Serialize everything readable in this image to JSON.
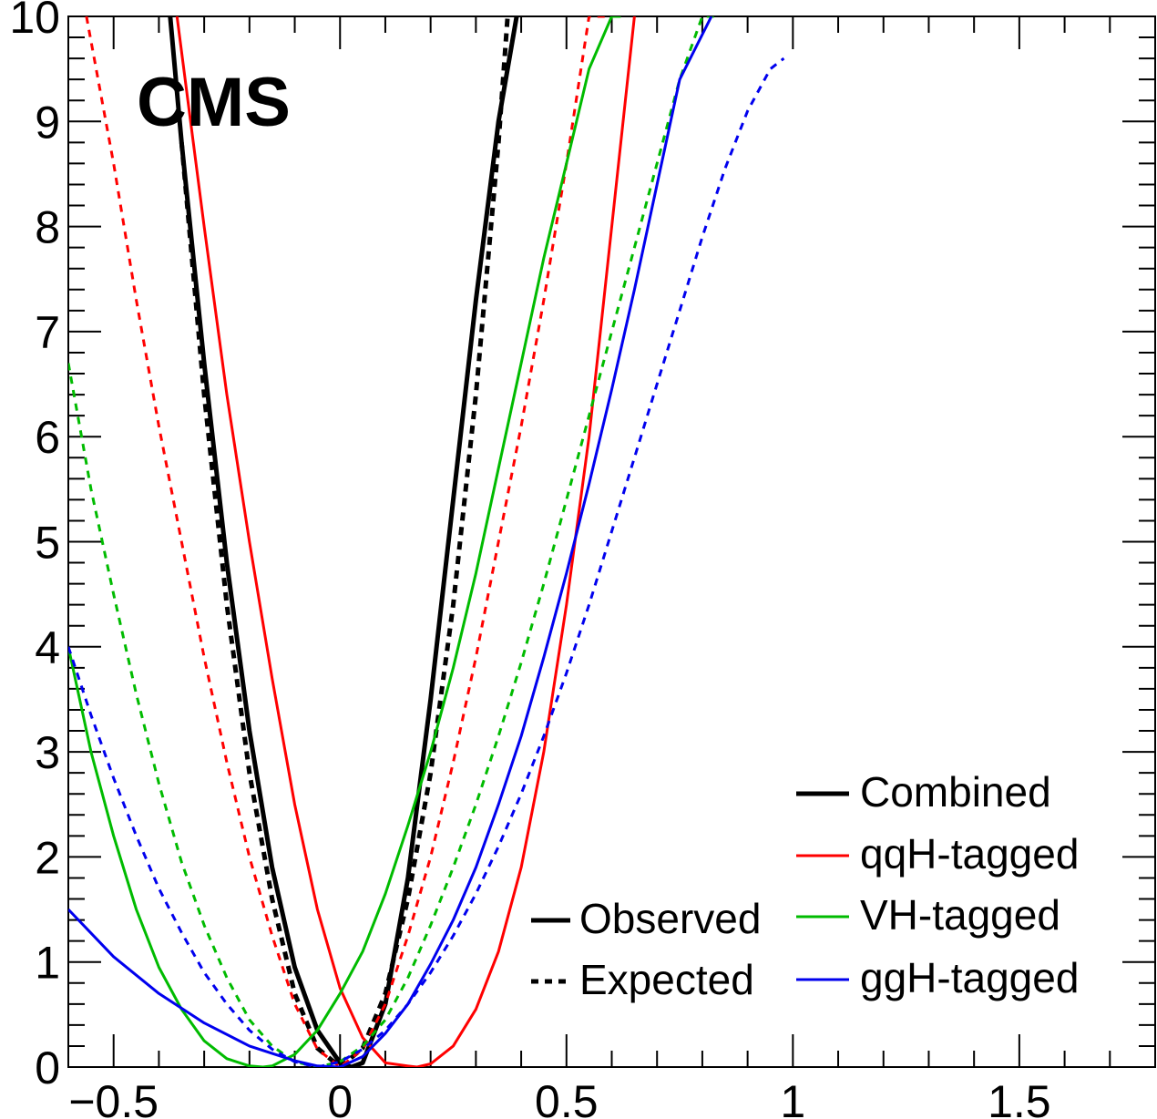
{
  "chart_data": {
    "type": "line",
    "brand_label": "CMS",
    "xlim": [
      -0.6,
      1.8
    ],
    "ylim": [
      0,
      10
    ],
    "x_ticks": [
      {
        "value": -0.5,
        "label": "−0.5"
      },
      {
        "value": 0,
        "label": "0"
      },
      {
        "value": 0.5,
        "label": "0.5"
      },
      {
        "value": 1,
        "label": "1"
      },
      {
        "value": 1.5,
        "label": "1.5"
      }
    ],
    "y_ticks": [
      {
        "value": 0,
        "label": "0"
      },
      {
        "value": 1,
        "label": "1"
      },
      {
        "value": 2,
        "label": "2"
      },
      {
        "value": 3,
        "label": "3"
      },
      {
        "value": 4,
        "label": "4"
      },
      {
        "value": 5,
        "label": "5"
      },
      {
        "value": 6,
        "label": "6"
      },
      {
        "value": 7,
        "label": "7"
      },
      {
        "value": 8,
        "label": "8"
      },
      {
        "value": 9,
        "label": "9"
      },
      {
        "value": 10,
        "label": "10"
      }
    ],
    "legend": {
      "placement": "bottom-right",
      "styles": [
        {
          "name": "Observed",
          "dashed": false
        },
        {
          "name": "Expected",
          "dashed": true
        }
      ],
      "categories": [
        {
          "name": "Combined",
          "color": "#000000"
        },
        {
          "name": "qqH-tagged",
          "color": "#ff0000"
        },
        {
          "name": "VH-tagged",
          "color": "#00bb00"
        },
        {
          "name": "ggH-tagged",
          "color": "#0000ee"
        }
      ]
    },
    "series": [
      {
        "name": "Combined",
        "style": "Observed",
        "color": "#000000",
        "width": 5,
        "dashed": false,
        "x": [
          -0.375,
          -0.35,
          -0.3,
          -0.25,
          -0.2,
          -0.15,
          -0.1,
          -0.05,
          0.0,
          0.025,
          0.05,
          0.1,
          0.15,
          0.2,
          0.25,
          0.3,
          0.35,
          0.39
        ],
        "y": [
          10,
          8.8,
          6.7,
          4.8,
          3.2,
          1.9,
          0.95,
          0.35,
          0.04,
          0.0,
          0.04,
          0.6,
          1.8,
          3.5,
          5.4,
          7.3,
          9.0,
          10
        ]
      },
      {
        "name": "Combined",
        "style": "Expected",
        "color": "#000000",
        "width": 5,
        "dashed": true,
        "x": [
          -0.35,
          -0.3,
          -0.25,
          -0.2,
          -0.15,
          -0.1,
          -0.05,
          0.0,
          0.05,
          0.1,
          0.15,
          0.2,
          0.25,
          0.3,
          0.35,
          0.37
        ],
        "y": [
          8.8,
          6.4,
          4.4,
          2.8,
          1.6,
          0.7,
          0.18,
          0.0,
          0.18,
          0.7,
          1.6,
          2.8,
          4.4,
          6.4,
          8.8,
          10
        ]
      },
      {
        "name": "qqH-tagged",
        "style": "Observed",
        "color": "#ff0000",
        "width": 3,
        "dashed": false,
        "x": [
          -0.36,
          -0.3,
          -0.25,
          -0.2,
          -0.15,
          -0.1,
          -0.05,
          0.0,
          0.05,
          0.1,
          0.15,
          0.17,
          0.2,
          0.25,
          0.3,
          0.35,
          0.4,
          0.45,
          0.5,
          0.55,
          0.6,
          0.65
        ],
        "y": [
          10,
          8.0,
          6.4,
          5.0,
          3.7,
          2.5,
          1.5,
          0.75,
          0.28,
          0.04,
          0.01,
          0.0,
          0.03,
          0.2,
          0.55,
          1.1,
          1.9,
          3.0,
          4.4,
          6.0,
          8.0,
          10
        ]
      },
      {
        "name": "qqH-tagged",
        "style": "Expected",
        "color": "#ff0000",
        "width": 3,
        "dashed": true,
        "x": [
          -0.56,
          -0.5,
          -0.45,
          -0.4,
          -0.35,
          -0.3,
          -0.25,
          -0.2,
          -0.15,
          -0.1,
          -0.05,
          0.0,
          0.05,
          0.1,
          0.15,
          0.2,
          0.25,
          0.3,
          0.35,
          0.4,
          0.45,
          0.5,
          0.55,
          0.6
        ],
        "y": [
          10,
          8.6,
          7.3,
          6.1,
          5.0,
          3.9,
          2.9,
          2.0,
          1.25,
          0.6,
          0.17,
          0.0,
          0.17,
          0.6,
          1.25,
          2.0,
          2.9,
          3.9,
          5.0,
          6.1,
          7.3,
          8.6,
          10,
          10
        ]
      },
      {
        "name": "VH-tagged",
        "style": "Observed",
        "color": "#00bb00",
        "width": 3,
        "dashed": false,
        "x": [
          -0.6,
          -0.55,
          -0.5,
          -0.45,
          -0.4,
          -0.35,
          -0.3,
          -0.25,
          -0.2,
          -0.17,
          -0.15,
          -0.1,
          -0.05,
          0.0,
          0.05,
          0.1,
          0.15,
          0.2,
          0.25,
          0.3,
          0.35,
          0.4,
          0.45,
          0.5,
          0.55,
          0.6,
          0.62
        ],
        "y": [
          4.0,
          3.0,
          2.2,
          1.5,
          0.95,
          0.55,
          0.25,
          0.08,
          0.01,
          0.0,
          0.01,
          0.12,
          0.35,
          0.7,
          1.1,
          1.65,
          2.3,
          3.0,
          3.8,
          4.7,
          5.7,
          6.7,
          7.7,
          8.6,
          9.5,
          10,
          10
        ]
      },
      {
        "name": "VH-tagged",
        "style": "Expected",
        "color": "#00bb00",
        "width": 3,
        "dashed": true,
        "x": [
          -0.6,
          -0.55,
          -0.5,
          -0.45,
          -0.4,
          -0.35,
          -0.3,
          -0.25,
          -0.2,
          -0.15,
          -0.1,
          -0.05,
          0.0,
          0.05,
          0.1,
          0.15,
          0.2,
          0.25,
          0.3,
          0.35,
          0.4,
          0.45,
          0.5,
          0.55,
          0.6,
          0.65,
          0.7,
          0.75,
          0.8,
          0.83
        ],
        "y": [
          6.7,
          5.5,
          4.5,
          3.55,
          2.7,
          1.95,
          1.35,
          0.85,
          0.45,
          0.2,
          0.05,
          0.0,
          0.05,
          0.2,
          0.45,
          0.85,
          1.35,
          1.9,
          2.5,
          3.15,
          3.85,
          4.6,
          5.4,
          6.2,
          7.0,
          7.8,
          8.6,
          9.4,
          10,
          10
        ]
      },
      {
        "name": "ggH-tagged",
        "style": "Observed",
        "color": "#0000ee",
        "width": 3,
        "dashed": false,
        "x": [
          -0.6,
          -0.5,
          -0.4,
          -0.3,
          -0.2,
          -0.1,
          -0.05,
          0.0,
          0.05,
          0.1,
          0.15,
          0.2,
          0.25,
          0.3,
          0.35,
          0.4,
          0.45,
          0.5,
          0.55,
          0.6,
          0.65,
          0.7,
          0.75,
          0.82
        ],
        "y": [
          1.5,
          1.05,
          0.7,
          0.42,
          0.2,
          0.06,
          0.01,
          0.0,
          0.1,
          0.32,
          0.6,
          0.98,
          1.4,
          1.9,
          2.5,
          3.15,
          3.9,
          4.7,
          5.55,
          6.45,
          7.4,
          8.4,
          9.4,
          10
        ]
      },
      {
        "name": "ggH-tagged",
        "style": "Expected",
        "color": "#0000ee",
        "width": 3,
        "dashed": true,
        "x": [
          -0.6,
          -0.55,
          -0.5,
          -0.45,
          -0.4,
          -0.35,
          -0.3,
          -0.25,
          -0.2,
          -0.15,
          -0.1,
          -0.05,
          0.0,
          0.05,
          0.1,
          0.15,
          0.2,
          0.25,
          0.3,
          0.35,
          0.4,
          0.45,
          0.5,
          0.55,
          0.6,
          0.65,
          0.7,
          0.75,
          0.8,
          0.85,
          0.9,
          0.95,
          0.98
        ],
        "y": [
          4.0,
          3.35,
          2.75,
          2.2,
          1.7,
          1.28,
          0.9,
          0.6,
          0.35,
          0.17,
          0.05,
          0.0,
          0.05,
          0.17,
          0.35,
          0.6,
          0.9,
          1.25,
          1.65,
          2.1,
          2.6,
          3.15,
          3.75,
          4.4,
          5.1,
          5.8,
          6.5,
          7.2,
          7.9,
          8.55,
          9.1,
          9.5,
          9.6
        ]
      }
    ]
  }
}
